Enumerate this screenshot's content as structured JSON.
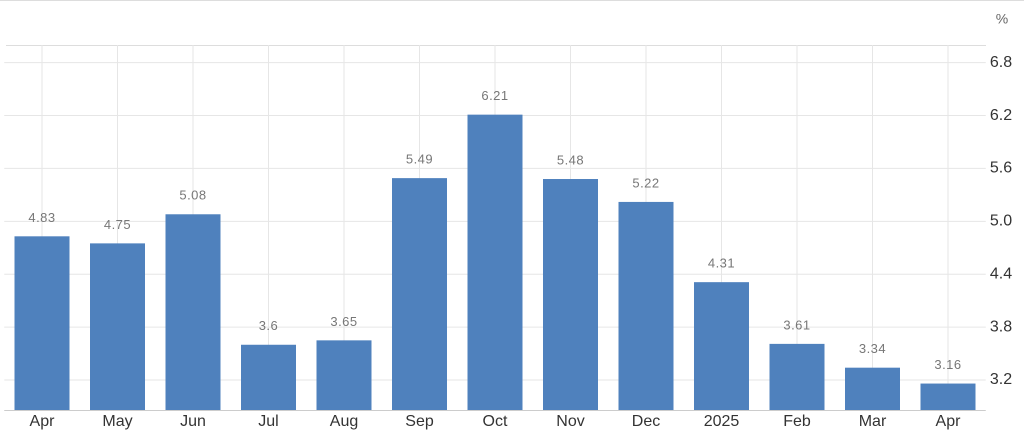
{
  "chart_data": {
    "type": "bar",
    "unit": "%",
    "categories": [
      "Apr",
      "May",
      "Jun",
      "Jul",
      "Aug",
      "Sep",
      "Oct",
      "Nov",
      "Dec",
      "2025",
      "Feb",
      "Mar",
      "Apr"
    ],
    "values": [
      4.83,
      4.75,
      5.08,
      3.6,
      3.65,
      5.49,
      6.21,
      5.48,
      5.22,
      4.31,
      3.61,
      3.34,
      3.16
    ],
    "color": "#4f81bd",
    "ylim": [
      2.86,
      7.0
    ],
    "yticks": [
      3.2,
      3.8,
      4.4,
      {
        "value": 5,
        "label": "5.0"
      },
      5.6,
      6.2,
      6.8
    ],
    "grid": true
  }
}
